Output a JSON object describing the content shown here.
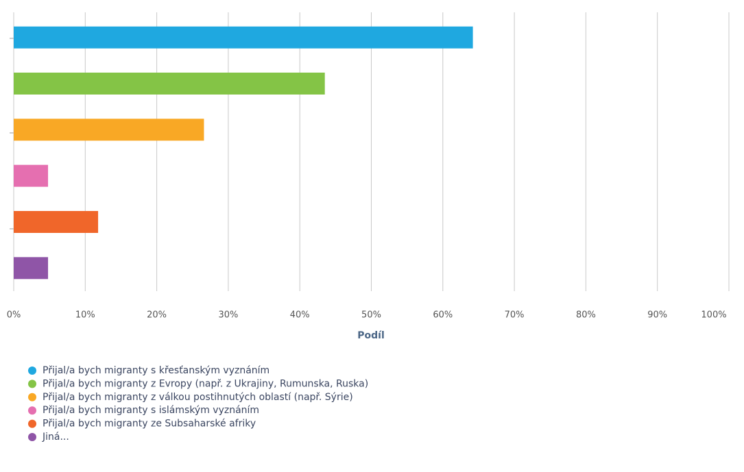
{
  "chart_data": {
    "type": "bar",
    "orientation": "horizontal",
    "x_label": "Podíl",
    "categories": [
      "Přijal/a bych migranty s křesťanským vyznáním",
      "Přijal/a bych migranty z Evropy (např. z Ukrajiny, Rumunska, Ruska)",
      "Přijal/a bych migranty z válkou postihnutých oblastí (např. Sýrie)",
      "Přijal/a bych migranty s islámským vyznáním",
      "Přijal/a bych migranty ze Subsaharské afriky",
      "Jiná..."
    ],
    "values": [
      64.2,
      43.5,
      26.6,
      4.8,
      11.8,
      4.8
    ],
    "colors": [
      "#1fa8e0",
      "#84c446",
      "#f9a825",
      "#e56fb0",
      "#f0662a",
      "#8f55a7"
    ],
    "xlim": [
      0,
      100
    ],
    "xticks": [
      {
        "value": 0,
        "label": "0%"
      },
      {
        "value": 10,
        "label": "10%"
      },
      {
        "value": 20,
        "label": "20%"
      },
      {
        "value": 30,
        "label": "30%"
      },
      {
        "value": 40,
        "label": "40%"
      },
      {
        "value": 50,
        "label": "50%"
      },
      {
        "value": 60,
        "label": "60%"
      },
      {
        "value": 70,
        "label": "70%"
      },
      {
        "value": 80,
        "label": "80%"
      },
      {
        "value": 90,
        "label": "90%"
      },
      {
        "value": 100,
        "label": "100%"
      }
    ],
    "grid": true,
    "legend": "bottom-left"
  }
}
